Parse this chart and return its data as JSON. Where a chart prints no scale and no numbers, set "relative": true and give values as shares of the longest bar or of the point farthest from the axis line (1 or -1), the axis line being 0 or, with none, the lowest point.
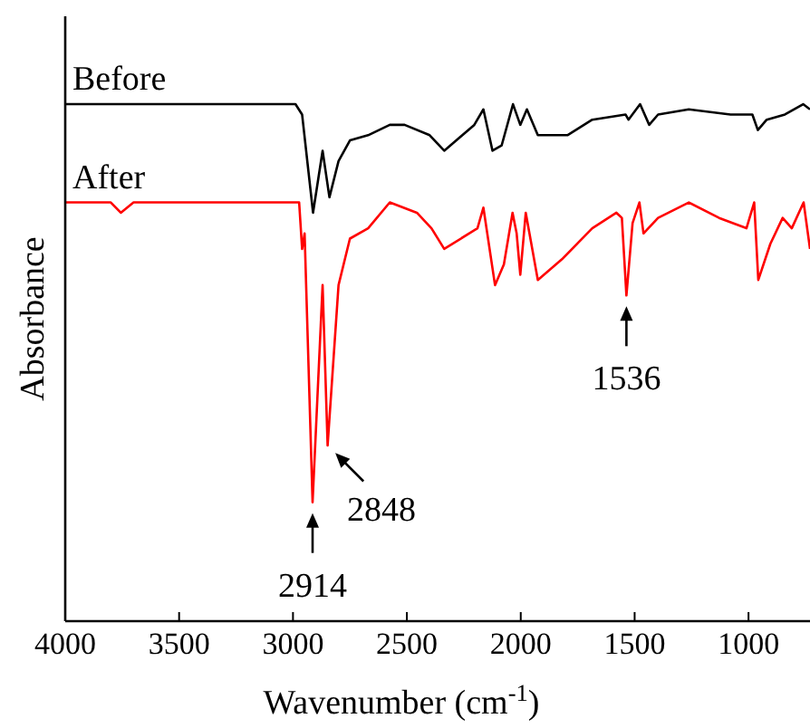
{
  "chart_data": {
    "type": "line",
    "xlabel": "Wavenumber (cm$^{-1}$)",
    "ylabel": "Absorbance",
    "relative": true,
    "legend": false,
    "grid": false,
    "marker": "none",
    "line_style": "solid",
    "xlim": [
      4000,
      730
    ],
    "xticks": [
      4000,
      3500,
      3000,
      2500,
      2000,
      1500,
      1000
    ],
    "series": [
      {
        "name": "Before",
        "color": "#000000",
        "x": [
          4000,
          3500,
          3000,
          2989,
          2960,
          2912,
          2870,
          2840,
          2800,
          2750,
          2670,
          2575,
          2510,
          2400,
          2336,
          2204,
          2164,
          2124,
          2084,
          2034,
          2002,
          1973,
          1925,
          1795,
          1686,
          1540,
          1527,
          1476,
          1436,
          1397,
          1262,
          1079,
          983,
          959,
          920,
          840,
          760,
          730
        ],
        "values": [
          1.0,
          1.0,
          1.0,
          1.0,
          0.98,
          0.79,
          0.91,
          0.82,
          0.89,
          0.93,
          0.94,
          0.96,
          0.96,
          0.94,
          0.91,
          0.96,
          0.99,
          0.91,
          0.92,
          1.0,
          0.96,
          0.99,
          0.94,
          0.94,
          0.97,
          0.98,
          0.97,
          1.0,
          0.96,
          0.98,
          0.99,
          0.98,
          0.98,
          0.95,
          0.97,
          0.98,
          1.0,
          0.99
        ]
      },
      {
        "name": "After",
        "color": "#ff0000",
        "x": [
          4000,
          3800,
          3756,
          3700,
          3500,
          3000,
          2973,
          2960,
          2949,
          2914,
          2870,
          2848,
          2800,
          2750,
          2670,
          2575,
          2456,
          2392,
          2336,
          2190,
          2164,
          2113,
          2074,
          2036,
          2018,
          2002,
          1978,
          1925,
          1819,
          1686,
          1580,
          1556,
          1536,
          1509,
          1479,
          1461,
          1397,
          1262,
          1129,
          1009,
          975,
          957,
          904,
          850,
          810,
          758,
          730
        ],
        "values": [
          0.81,
          0.81,
          0.79,
          0.81,
          0.81,
          0.81,
          0.81,
          0.72,
          0.75,
          0.23,
          0.65,
          0.34,
          0.65,
          0.74,
          0.76,
          0.81,
          0.79,
          0.76,
          0.72,
          0.76,
          0.8,
          0.65,
          0.69,
          0.79,
          0.75,
          0.67,
          0.79,
          0.66,
          0.7,
          0.76,
          0.79,
          0.78,
          0.63,
          0.77,
          0.81,
          0.75,
          0.78,
          0.81,
          0.78,
          0.76,
          0.81,
          0.66,
          0.73,
          0.78,
          0.76,
          0.81,
          0.72
        ]
      }
    ],
    "annotations": [
      {
        "text": "2914",
        "x": 2914,
        "y": 0.23
      },
      {
        "text": "2848",
        "x": 2848,
        "y": 0.34
      },
      {
        "text": "1536",
        "x": 1536,
        "y": 0.63
      }
    ]
  }
}
